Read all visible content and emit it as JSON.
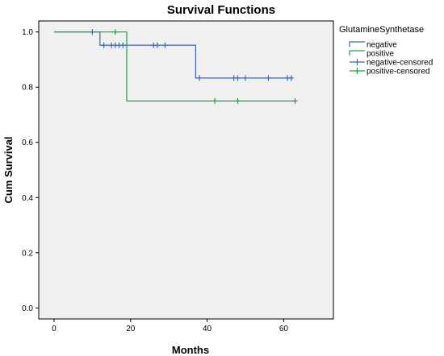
{
  "chart_data": {
    "type": "line",
    "title": "Survival Functions",
    "xlabel": "Months",
    "ylabel": "Cum Survival",
    "xlim": [
      -4,
      73
    ],
    "ylim": [
      -0.04,
      1.04
    ],
    "xticks": [
      0,
      20,
      40,
      60
    ],
    "yticks": [
      0.0,
      0.2,
      0.4,
      0.6,
      0.8,
      1.0
    ],
    "xtick_labels": [
      "0",
      "20",
      "40",
      "60"
    ],
    "ytick_labels": [
      "0.0",
      "0.2",
      "0.4",
      "0.6",
      "0.8",
      "1.0"
    ],
    "grid": false,
    "legend": {
      "title": "GlutamineSynthetase",
      "placement": "right",
      "entries": [
        "negative",
        "positive",
        "negative-censored",
        "positive-censored"
      ]
    },
    "series": [
      {
        "name": "negative",
        "color": "#3e66b0",
        "step": [
          [
            0,
            1.0
          ],
          [
            12,
            1.0
          ],
          [
            12,
            0.952
          ],
          [
            37,
            0.952
          ],
          [
            37,
            0.833
          ],
          [
            62,
            0.833
          ]
        ],
        "censored": [
          [
            10,
            1.0
          ],
          [
            13,
            0.952
          ],
          [
            15,
            0.952
          ],
          [
            16,
            0.952
          ],
          [
            17,
            0.952
          ],
          [
            18,
            0.952
          ],
          [
            26,
            0.952
          ],
          [
            27,
            0.952
          ],
          [
            29,
            0.952
          ],
          [
            38,
            0.833
          ],
          [
            47,
            0.833
          ],
          [
            48,
            0.833
          ],
          [
            50,
            0.833
          ],
          [
            56,
            0.833
          ],
          [
            61,
            0.833
          ],
          [
            62,
            0.833
          ]
        ]
      },
      {
        "name": "positive",
        "color": "#17a34a",
        "step": [
          [
            0,
            1.0
          ],
          [
            19,
            1.0
          ],
          [
            19,
            0.75
          ],
          [
            63,
            0.75
          ]
        ],
        "censored": [
          [
            16,
            1.0
          ],
          [
            42,
            0.75
          ],
          [
            48,
            0.75
          ],
          [
            63,
            0.75
          ]
        ]
      }
    ]
  }
}
